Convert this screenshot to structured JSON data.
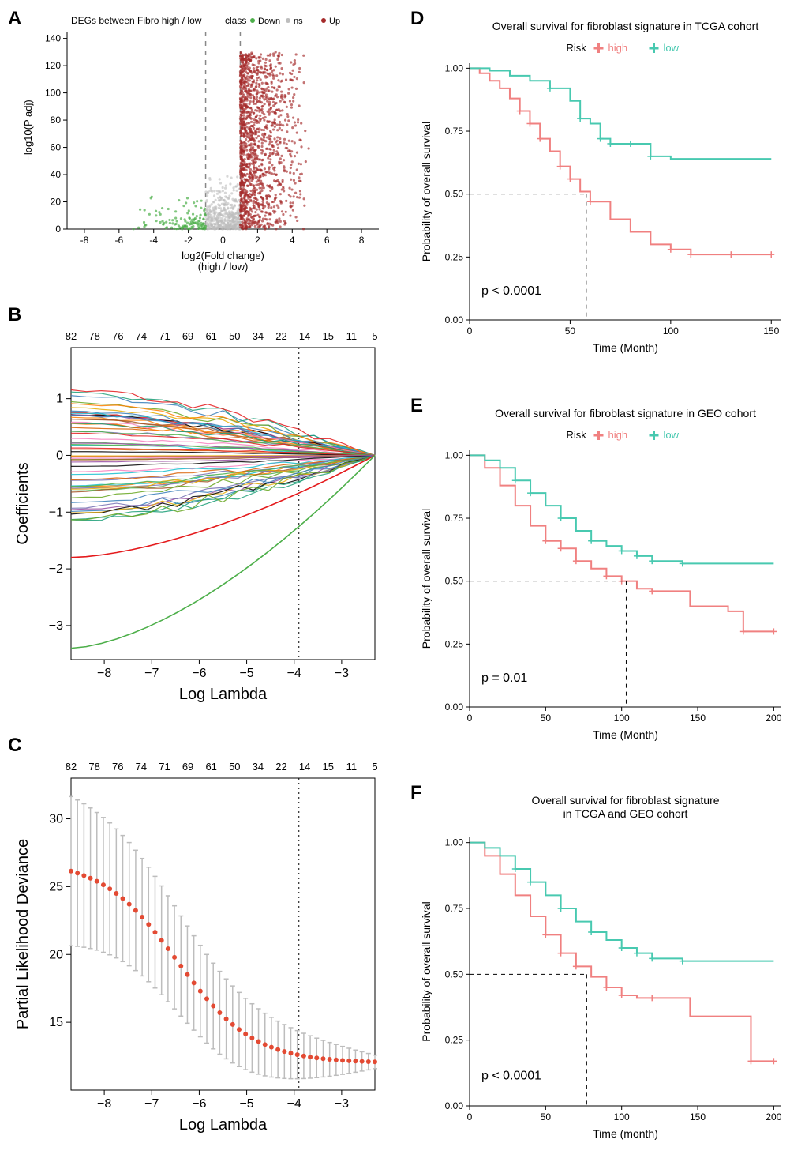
{
  "panelA": {
    "label": "A",
    "title": "DEGs between Fibro high / low",
    "legend_label": "class",
    "legend_items": [
      "Down",
      "ns",
      "Up"
    ],
    "legend_colors": [
      "#4daf4a",
      "#bdbdbd",
      "#a52a2a"
    ],
    "xlabel": "log2(Fold change)",
    "xsublabel": "(high / low)",
    "ylabel": "−log10(P adj)",
    "xlim": [
      -9,
      9
    ],
    "ylim": [
      0,
      145
    ],
    "xticks": [
      -8,
      -6,
      -4,
      -2,
      0,
      2,
      4,
      6,
      8
    ],
    "yticks": [
      0,
      20,
      40,
      60,
      80,
      100,
      120,
      140
    ],
    "vlines": [
      -1,
      1
    ],
    "vline_color": "#888888"
  },
  "panelB": {
    "label": "B",
    "xlabel": "Log Lambda",
    "ylabel": "Coefficients",
    "xlim": [
      -8.7,
      -2.3
    ],
    "ylim": [
      -3.6,
      1.9
    ],
    "xticks": [
      -8,
      -7,
      -6,
      -5,
      -4,
      -3
    ],
    "yticks": [
      -3,
      -2,
      -1,
      0,
      1
    ],
    "top_values": [
      82,
      78,
      76,
      74,
      71,
      69,
      61,
      50,
      34,
      22,
      14,
      15,
      11,
      5
    ],
    "vline_x": -3.9
  },
  "panelC": {
    "label": "C",
    "xlabel": "Log Lambda",
    "ylabel": "Partial Likelihood Deviance",
    "xlim": [
      -8.7,
      -2.3
    ],
    "ylim": [
      10,
      33
    ],
    "xticks": [
      -8,
      -7,
      -6,
      -5,
      -4,
      -3
    ],
    "yticks": [
      15,
      20,
      25,
      30
    ],
    "top_values": [
      82,
      78,
      76,
      74,
      71,
      69,
      61,
      50,
      34,
      22,
      14,
      15,
      11,
      5
    ],
    "vline_x": -3.9,
    "point_color": "#e34a33",
    "error_color": "#bdbdbd"
  },
  "panelD": {
    "label": "D",
    "title": "Overall survival for fibroblast signature in TCGA cohort",
    "xlabel": "Time (Month)",
    "ylabel": "Probability of overall survival",
    "legend_label": "Risk",
    "legend_items": [
      "high",
      "low"
    ],
    "legend_colors": [
      "#f08080",
      "#48c9b0"
    ],
    "xlim": [
      0,
      155
    ],
    "ylim": [
      0,
      1.02
    ],
    "xticks": [
      0,
      50,
      100,
      150
    ],
    "yticks": [
      0.0,
      0.25,
      0.5,
      0.75,
      1.0
    ],
    "pvalue": "p < 0.0001",
    "median_x": 58,
    "high": [
      [
        0,
        1
      ],
      [
        5,
        0.98
      ],
      [
        10,
        0.95
      ],
      [
        15,
        0.92
      ],
      [
        20,
        0.88
      ],
      [
        25,
        0.83
      ],
      [
        30,
        0.78
      ],
      [
        35,
        0.72
      ],
      [
        40,
        0.67
      ],
      [
        45,
        0.61
      ],
      [
        50,
        0.56
      ],
      [
        55,
        0.51
      ],
      [
        60,
        0.47
      ],
      [
        70,
        0.4
      ],
      [
        80,
        0.35
      ],
      [
        90,
        0.3
      ],
      [
        100,
        0.28
      ],
      [
        110,
        0.26
      ],
      [
        130,
        0.26
      ],
      [
        150,
        0.26
      ]
    ],
    "low": [
      [
        0,
        1
      ],
      [
        10,
        0.99
      ],
      [
        20,
        0.97
      ],
      [
        30,
        0.95
      ],
      [
        40,
        0.92
      ],
      [
        50,
        0.87
      ],
      [
        55,
        0.8
      ],
      [
        60,
        0.78
      ],
      [
        65,
        0.72
      ],
      [
        70,
        0.7
      ],
      [
        80,
        0.7
      ],
      [
        90,
        0.65
      ],
      [
        100,
        0.64
      ],
      [
        120,
        0.64
      ],
      [
        150,
        0.64
      ]
    ]
  },
  "panelE": {
    "label": "E",
    "title": "Overall survival for fibroblast signature in GEO cohort",
    "xlabel": "Time (Month)",
    "ylabel": "Probability of overall survival",
    "legend_label": "Risk",
    "legend_items": [
      "high",
      "low"
    ],
    "legend_colors": [
      "#f08080",
      "#48c9b0"
    ],
    "xlim": [
      0,
      205
    ],
    "ylim": [
      0,
      1.02
    ],
    "xticks": [
      0,
      50,
      100,
      150,
      200
    ],
    "yticks": [
      0.0,
      0.25,
      0.5,
      0.75,
      1.0
    ],
    "pvalue": "p = 0.01",
    "median_x": 103,
    "high": [
      [
        0,
        1
      ],
      [
        10,
        0.95
      ],
      [
        20,
        0.88
      ],
      [
        30,
        0.8
      ],
      [
        40,
        0.72
      ],
      [
        50,
        0.66
      ],
      [
        60,
        0.63
      ],
      [
        70,
        0.58
      ],
      [
        80,
        0.55
      ],
      [
        90,
        0.52
      ],
      [
        100,
        0.5
      ],
      [
        110,
        0.47
      ],
      [
        120,
        0.46
      ],
      [
        140,
        0.46
      ],
      [
        145,
        0.4
      ],
      [
        170,
        0.38
      ],
      [
        180,
        0.3
      ],
      [
        200,
        0.3
      ]
    ],
    "low": [
      [
        0,
        1
      ],
      [
        10,
        0.98
      ],
      [
        20,
        0.95
      ],
      [
        30,
        0.9
      ],
      [
        40,
        0.85
      ],
      [
        50,
        0.8
      ],
      [
        60,
        0.75
      ],
      [
        70,
        0.7
      ],
      [
        80,
        0.66
      ],
      [
        90,
        0.64
      ],
      [
        100,
        0.62
      ],
      [
        110,
        0.6
      ],
      [
        120,
        0.58
      ],
      [
        140,
        0.57
      ],
      [
        160,
        0.57
      ],
      [
        200,
        0.57
      ]
    ]
  },
  "panelF": {
    "label": "F",
    "title1": "Overall survival for fibroblast signature",
    "title2": "in TCGA and GEO cohort",
    "xlabel": "Time (month)",
    "ylabel": "Probability of overall survival",
    "legend_colors": [
      "#f08080",
      "#48c9b0"
    ],
    "xlim": [
      0,
      205
    ],
    "ylim": [
      0,
      1.02
    ],
    "xticks": [
      0,
      50,
      100,
      150,
      200
    ],
    "yticks": [
      0.0,
      0.25,
      0.5,
      0.75,
      1.0
    ],
    "pvalue": "p < 0.0001",
    "median_x": 77,
    "high": [
      [
        0,
        1
      ],
      [
        10,
        0.95
      ],
      [
        20,
        0.88
      ],
      [
        30,
        0.8
      ],
      [
        40,
        0.72
      ],
      [
        50,
        0.65
      ],
      [
        60,
        0.58
      ],
      [
        70,
        0.53
      ],
      [
        80,
        0.49
      ],
      [
        90,
        0.45
      ],
      [
        100,
        0.42
      ],
      [
        110,
        0.41
      ],
      [
        120,
        0.41
      ],
      [
        140,
        0.41
      ],
      [
        145,
        0.34
      ],
      [
        180,
        0.34
      ],
      [
        185,
        0.17
      ],
      [
        200,
        0.17
      ]
    ],
    "low": [
      [
        0,
        1
      ],
      [
        10,
        0.98
      ],
      [
        20,
        0.95
      ],
      [
        30,
        0.9
      ],
      [
        40,
        0.85
      ],
      [
        50,
        0.8
      ],
      [
        60,
        0.75
      ],
      [
        70,
        0.7
      ],
      [
        80,
        0.66
      ],
      [
        90,
        0.63
      ],
      [
        100,
        0.6
      ],
      [
        110,
        0.58
      ],
      [
        120,
        0.56
      ],
      [
        140,
        0.55
      ],
      [
        160,
        0.55
      ],
      [
        200,
        0.55
      ]
    ]
  }
}
